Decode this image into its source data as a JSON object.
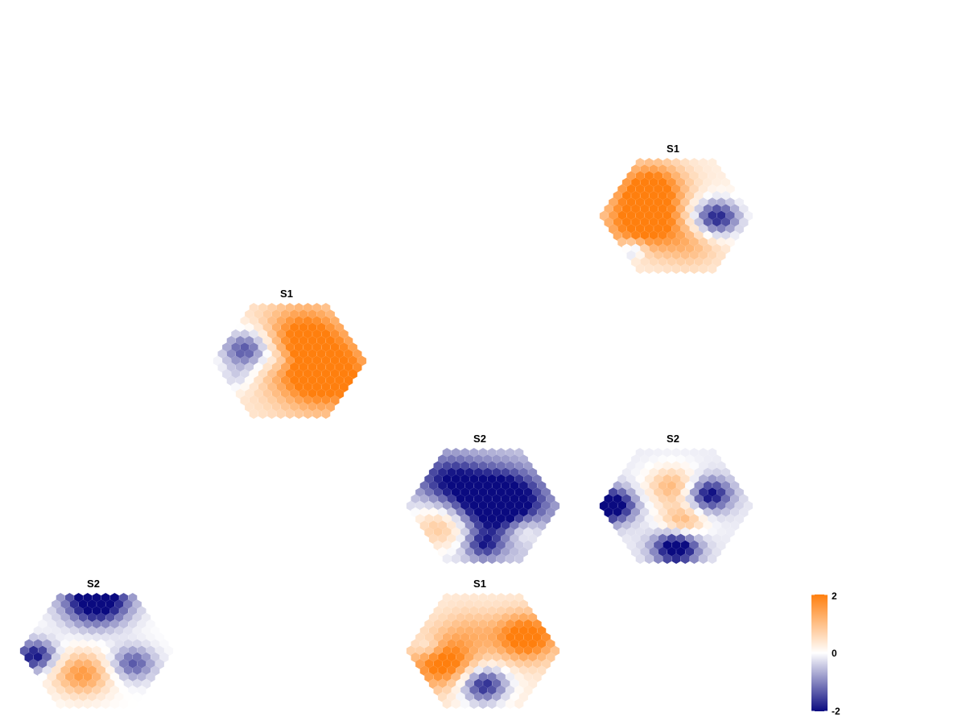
{
  "chart_data": {
    "type": "heatmap",
    "description_shape": "hexagonal spatial grids (spot maps)",
    "color_scale": {
      "low": "#0a0a80",
      "mid": "#ffffff",
      "high": "#ff7f0e",
      "min": -2,
      "max": 2,
      "ticks": [
        {
          "value": 2,
          "label": "2"
        },
        {
          "value": 0,
          "label": "0"
        },
        {
          "value": -2,
          "label": "-2"
        }
      ]
    },
    "panels": [
      {
        "title": "S1",
        "pattern": [
          {
            "u": -0.35,
            "v": -0.55,
            "w": 1.9,
            "s": 0.32
          },
          {
            "u": -0.45,
            "v": 0.1,
            "w": 2.4,
            "s": 0.36
          },
          {
            "u": 0.55,
            "v": 0.05,
            "w": -2.2,
            "s": 0.24
          },
          {
            "u": 0.2,
            "v": 0.55,
            "w": 0.8,
            "s": 0.3
          },
          {
            "u": -0.6,
            "v": 0.65,
            "w": -1.2,
            "s": 0.12
          }
        ],
        "bias": 0.25
      },
      {
        "title": "S1",
        "pattern": [
          {
            "u": -0.6,
            "v": -0.2,
            "w": -1.9,
            "s": 0.26
          },
          {
            "u": -0.75,
            "v": 0.35,
            "w": -0.6,
            "s": 0.18
          },
          {
            "u": 0.45,
            "v": 0.25,
            "w": 2.6,
            "s": 0.45
          },
          {
            "u": 0.2,
            "v": -0.55,
            "w": 1.5,
            "s": 0.38
          },
          {
            "u": -0.1,
            "v": 0.0,
            "w": -0.6,
            "s": 0.15
          }
        ],
        "bias": 0.35
      },
      {
        "title": "S2",
        "pattern": [
          {
            "u": 0.2,
            "v": -0.05,
            "w": -3.0,
            "s": 0.42
          },
          {
            "u": -0.5,
            "v": -0.5,
            "w": -1.3,
            "s": 0.32
          },
          {
            "u": -0.55,
            "v": 0.4,
            "w": 1.4,
            "s": 0.32
          },
          {
            "u": 0.55,
            "v": 0.45,
            "w": 1.0,
            "s": 0.2
          },
          {
            "u": 0.0,
            "v": 0.75,
            "w": -1.3,
            "s": 0.18
          }
        ],
        "bias": -0.35
      },
      {
        "title": "S2",
        "pattern": [
          {
            "u": -0.9,
            "v": 0.0,
            "w": -2.6,
            "s": 0.22
          },
          {
            "u": 0.45,
            "v": -0.2,
            "w": -2.0,
            "s": 0.22
          },
          {
            "u": 0.0,
            "v": 0.8,
            "w": -2.4,
            "s": 0.22
          },
          {
            "u": -0.05,
            "v": -0.35,
            "w": 1.3,
            "s": 0.25
          },
          {
            "u": 0.1,
            "v": 0.3,
            "w": 1.3,
            "s": 0.22
          }
        ],
        "bias": -0.15
      },
      {
        "title": "S2",
        "pattern": [
          {
            "u": 0.0,
            "v": -0.95,
            "w": -2.8,
            "s": 0.32
          },
          {
            "u": -0.85,
            "v": 0.1,
            "w": -2.0,
            "s": 0.2
          },
          {
            "u": -0.2,
            "v": 0.45,
            "w": 1.6,
            "s": 0.28
          },
          {
            "u": 0.5,
            "v": 0.25,
            "w": -1.4,
            "s": 0.22
          }
        ],
        "bias": 0.0
      },
      {
        "title": "S1",
        "pattern": [
          {
            "u": -0.55,
            "v": 0.25,
            "w": 2.0,
            "s": 0.32
          },
          {
            "u": 0.6,
            "v": -0.25,
            "w": 2.2,
            "s": 0.3
          },
          {
            "u": 0.0,
            "v": 0.65,
            "w": -2.2,
            "s": 0.24
          },
          {
            "u": -0.2,
            "v": -0.35,
            "w": 0.7,
            "s": 0.3
          },
          {
            "u": -0.75,
            "v": -0.05,
            "w": -0.8,
            "s": 0.14
          }
        ],
        "bias": 0.3
      }
    ]
  }
}
